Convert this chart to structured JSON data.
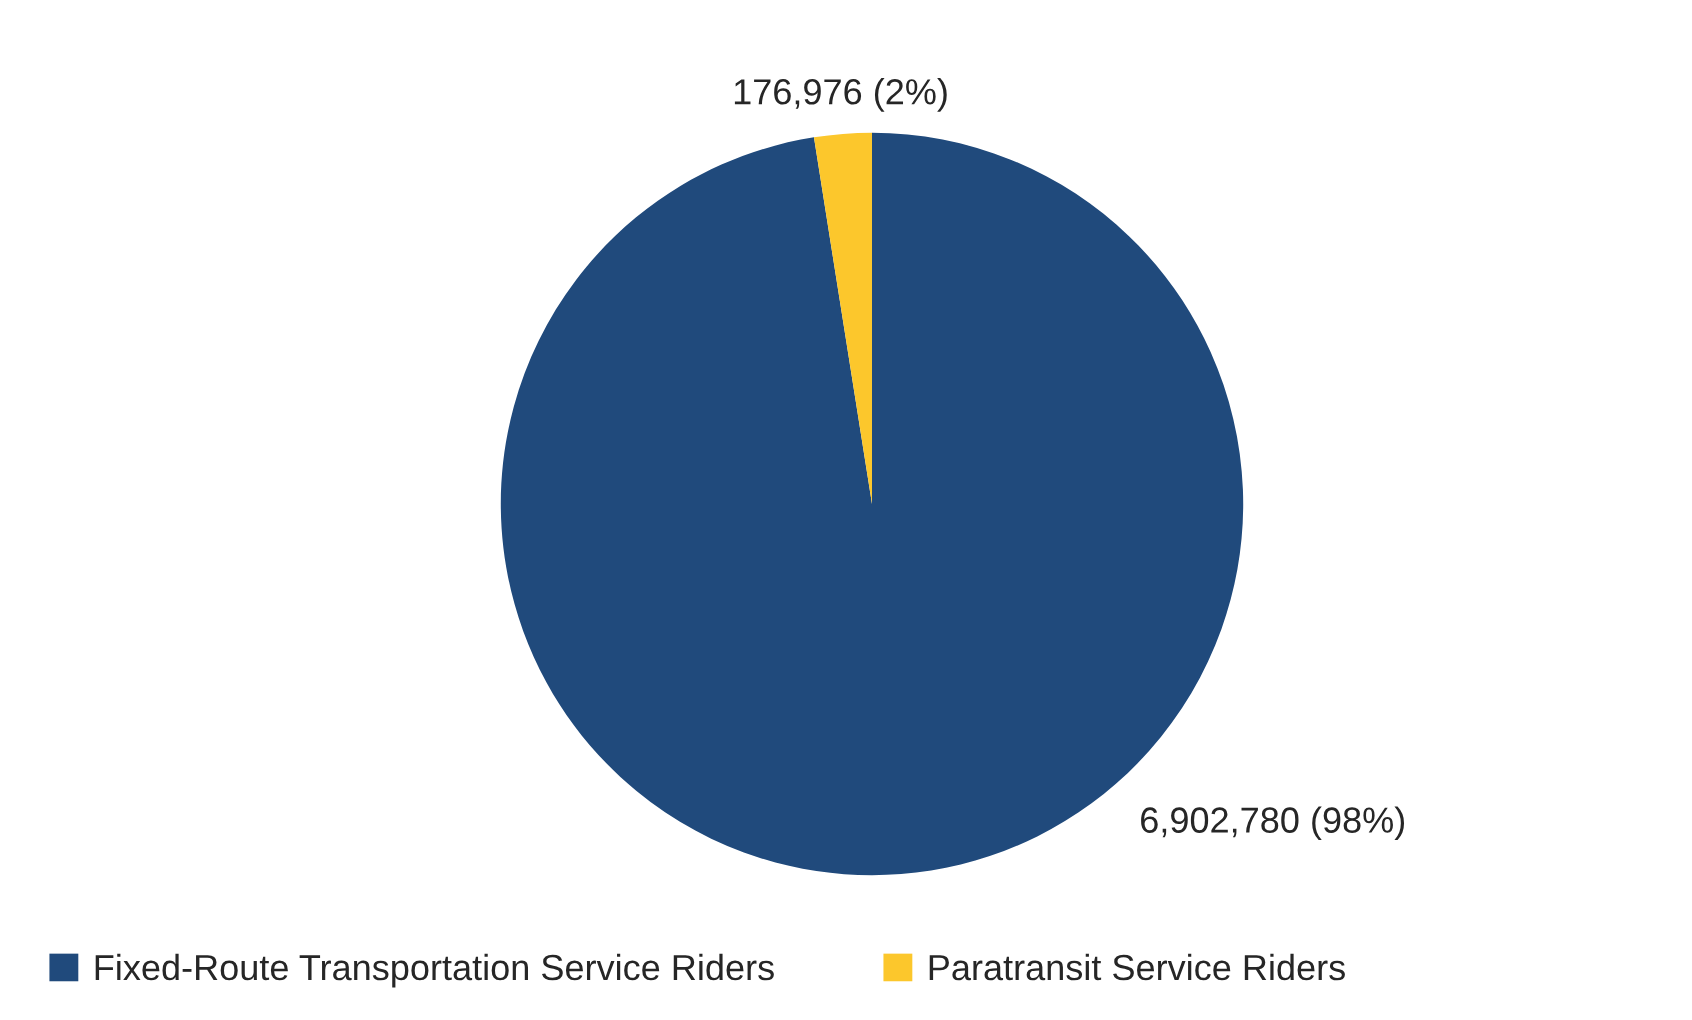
{
  "chart_data": {
    "type": "pie",
    "categories": [
      "Fixed-Route Transportation Service Riders",
      "Paratransit Service Riders"
    ],
    "values": [
      6902780,
      176976
    ],
    "colors": [
      "#204a7c",
      "#fcc72c"
    ],
    "value_labels": [
      "6,902,780 (98%)",
      "176,976 (2%)"
    ],
    "legend": "bottom"
  }
}
